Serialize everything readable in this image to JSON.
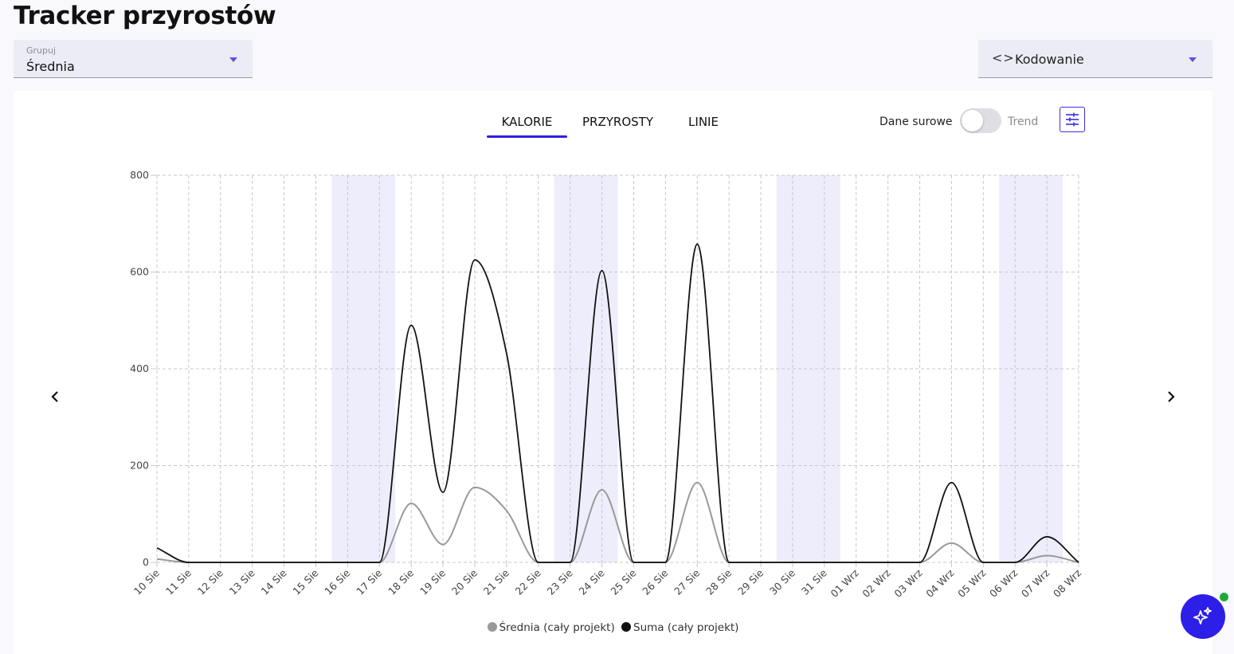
{
  "page": {
    "title": "Tracker przyrostów"
  },
  "group_select": {
    "label": "Grupuj",
    "value": "Średnia"
  },
  "coding_select": {
    "icon": "code-brackets-icon",
    "value": "Kodowanie"
  },
  "tabs": [
    {
      "label": "KALORIE",
      "active": true
    },
    {
      "label": "PRZYROSTY",
      "active": false
    },
    {
      "label": "LINIE",
      "active": false
    }
  ],
  "toggle": {
    "left_label": "Dane surowe",
    "right_label": "Trend",
    "on": false
  },
  "colors": {
    "accent": "#2d1fe0",
    "weekend_band": "#ededfc",
    "series_average": "#999999",
    "series_sum": "#111111",
    "status_dot": "#1fa83a"
  },
  "chart_data": {
    "type": "line",
    "x": [
      "10 Sie",
      "11 Sie",
      "12 Sie",
      "13 Sie",
      "14 Sie",
      "15 Sie",
      "16 Sie",
      "17 Sie",
      "18 Sie",
      "19 Sie",
      "20 Sie",
      "21 Sie",
      "22 Sie",
      "23 Sie",
      "24 Sie",
      "25 Sie",
      "26 Sie",
      "27 Sie",
      "28 Sie",
      "29 Sie",
      "30 Sie",
      "31 Sie",
      "01 Wrz",
      "02 Wrz",
      "03 Wrz",
      "04 Wrz",
      "05 Wrz",
      "06 Wrz",
      "07 Wrz",
      "08 Wrz"
    ],
    "series": [
      {
        "name": "Średnia (cały projekt)",
        "values": [
          7,
          0,
          0,
          0,
          0,
          0,
          0,
          0,
          122,
          37,
          155,
          107,
          0,
          0,
          150,
          0,
          0,
          165,
          0,
          0,
          0,
          0,
          0,
          0,
          0,
          40,
          0,
          0,
          14,
          0
        ]
      },
      {
        "name": "Suma (cały projekt)",
        "values": [
          30,
          0,
          0,
          0,
          0,
          0,
          0,
          0,
          490,
          145,
          625,
          432,
          0,
          0,
          603,
          0,
          0,
          658,
          0,
          0,
          0,
          0,
          0,
          0,
          0,
          165,
          0,
          0,
          53,
          0
        ]
      }
    ],
    "yticks": [
      0,
      200,
      400,
      600,
      800
    ],
    "ylim": [
      0,
      800
    ],
    "weekend_bands": [
      [
        "16 Sie",
        "17 Sie"
      ],
      [
        "23 Sie",
        "24 Sie"
      ],
      [
        "30 Sie",
        "31 Sie"
      ],
      [
        "06 Wrz",
        "07 Wrz"
      ]
    ],
    "smooth": true,
    "grid": true,
    "legend_position": "bottom-center"
  }
}
